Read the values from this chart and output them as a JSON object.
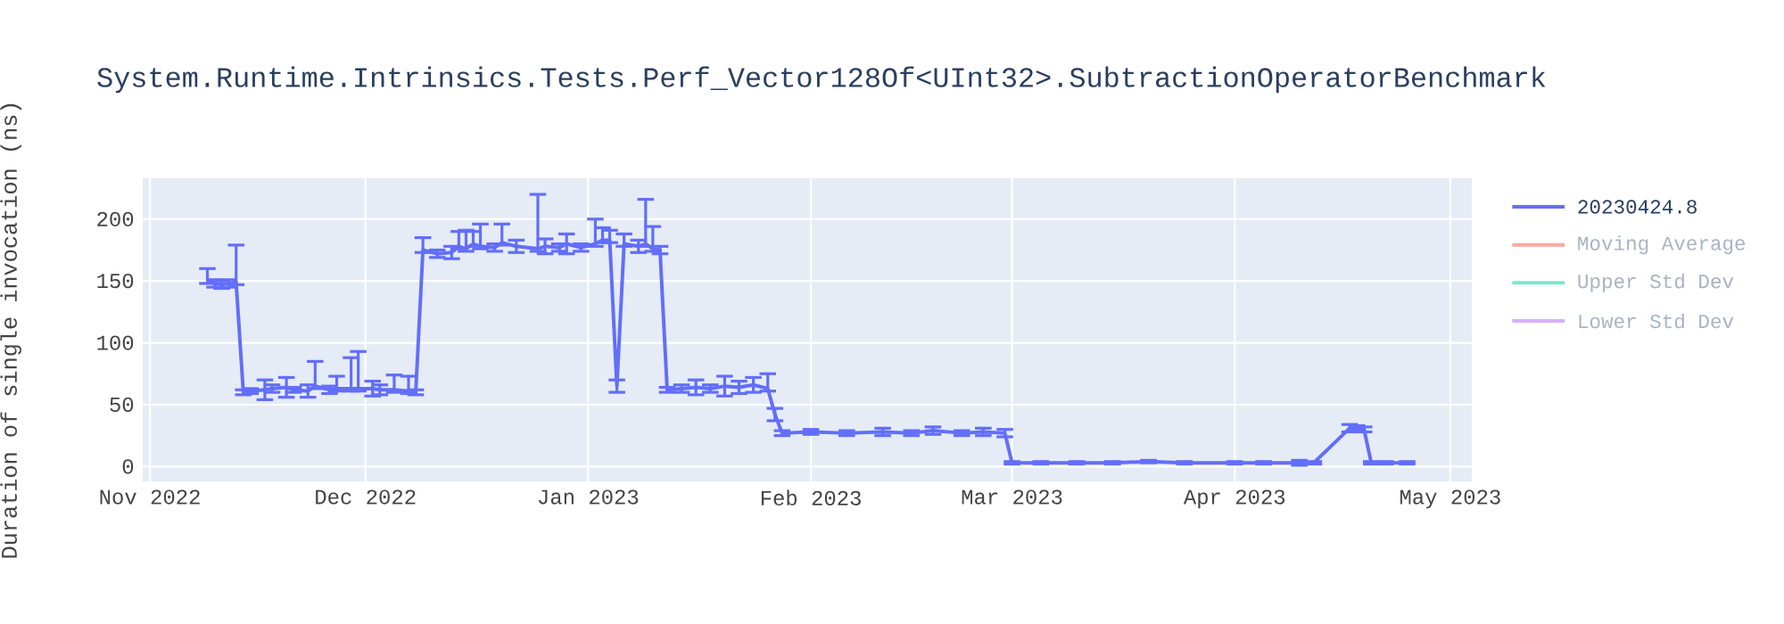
{
  "chart_data": {
    "type": "line",
    "title": "System.Runtime.Intrinsics.Tests.Perf_Vector128Of<UInt32>.SubtractionOperatorBenchmark",
    "ylabel": "Duration of single invocation (ns)",
    "xlim": [
      "2022-10-31",
      "2023-05-04"
    ],
    "ylim": [
      -12,
      233
    ],
    "xticks": [
      {
        "value": "2022-11-01",
        "label": "Nov 2022"
      },
      {
        "value": "2022-12-01",
        "label": "Dec 2022"
      },
      {
        "value": "2023-01-01",
        "label": "Jan 2023"
      },
      {
        "value": "2023-02-01",
        "label": "Feb 2023"
      },
      {
        "value": "2023-03-01",
        "label": "Mar 2023"
      },
      {
        "value": "2023-04-01",
        "label": "Apr 2023"
      },
      {
        "value": "2023-05-01",
        "label": "May 2023"
      }
    ],
    "yticks": [
      0,
      50,
      100,
      150,
      200
    ],
    "grid": true,
    "legend": "top right",
    "series": [
      {
        "name": "20230424.8",
        "color": "#636efa",
        "x": [
          "2022-11-09",
          "2022-11-10",
          "2022-11-11",
          "2022-11-12",
          "2022-11-13",
          "2022-11-14",
          "2022-11-15",
          "2022-11-17",
          "2022-11-18",
          "2022-11-20",
          "2022-11-21",
          "2022-11-23",
          "2022-11-24",
          "2022-11-26",
          "2022-11-27",
          "2022-11-29",
          "2022-11-30",
          "2022-12-02",
          "2022-12-03",
          "2022-12-05",
          "2022-12-07",
          "2022-12-08",
          "2022-12-09",
          "2022-12-11",
          "2022-12-13",
          "2022-12-14",
          "2022-12-15",
          "2022-12-16",
          "2022-12-17",
          "2022-12-19",
          "2022-12-20",
          "2022-12-22",
          "2022-12-25",
          "2022-12-26",
          "2022-12-28",
          "2022-12-29",
          "2022-12-31",
          "2023-01-02",
          "2023-01-03",
          "2023-01-04",
          "2023-01-05",
          "2023-01-06",
          "2023-01-08",
          "2023-01-09",
          "2023-01-10",
          "2023-01-11",
          "2023-01-12",
          "2023-01-14",
          "2023-01-16",
          "2023-01-18",
          "2023-01-20",
          "2023-01-22",
          "2023-01-24",
          "2023-01-26",
          "2023-01-27",
          "2023-01-28",
          "2023-02-01",
          "2023-02-06",
          "2023-02-11",
          "2023-02-15",
          "2023-02-18",
          "2023-02-22",
          "2023-02-25",
          "2023-02-28",
          "2023-03-01",
          "2023-03-05",
          "2023-03-10",
          "2023-03-15",
          "2023-03-20",
          "2023-03-25",
          "2023-04-01",
          "2023-04-05",
          "2023-04-10",
          "2023-04-12",
          "2023-04-17",
          "2023-04-18",
          "2023-04-19",
          "2023-04-20",
          "2023-04-22",
          "2023-04-25"
        ],
        "values": [
          150,
          148,
          147,
          148,
          149,
          60,
          61,
          62,
          63,
          64,
          62,
          61,
          65,
          62,
          63,
          63,
          63,
          63,
          62,
          62,
          61,
          60,
          175,
          172,
          173,
          178,
          176,
          180,
          178,
          177,
          181,
          178,
          176,
          178,
          177,
          180,
          177,
          180,
          183,
          183,
          65,
          180,
          178,
          180,
          176,
          175,
          62,
          63,
          64,
          63,
          65,
          64,
          66,
          63,
          42,
          27,
          28,
          27,
          28,
          27,
          29,
          27,
          28,
          27,
          3,
          3,
          3,
          3,
          4,
          3,
          3,
          3,
          3,
          3,
          31,
          31,
          30,
          3,
          3,
          3
        ],
        "errors": [
          [
            148,
            160
          ],
          3,
          3,
          3,
          [
            147,
            179
          ],
          2,
          2,
          8,
          3,
          8,
          2,
          5,
          [
            63,
            85
          ],
          3,
          [
            61,
            73
          ],
          [
            61,
            88
          ],
          [
            61,
            93
          ],
          6,
          4,
          [
            60,
            74
          ],
          [
            59,
            73
          ],
          2,
          [
            173,
            185
          ],
          3,
          5,
          [
            176,
            190
          ],
          [
            174,
            191
          ],
          [
            178,
            190
          ],
          [
            176,
            196
          ],
          3,
          [
            179,
            196
          ],
          5,
          [
            174,
            220
          ],
          6,
          3,
          8,
          3,
          [
            178,
            200
          ],
          [
            181,
            193
          ],
          [
            181,
            191
          ],
          5,
          [
            178,
            188
          ],
          5,
          [
            178,
            216
          ],
          [
            174,
            194
          ],
          3,
          2,
          3,
          6,
          3,
          8,
          5,
          6,
          [
            61,
            75
          ],
          5,
          2,
          2,
          2,
          3,
          2,
          3,
          2,
          3,
          3,
          1,
          1,
          1,
          1,
          1,
          1,
          1,
          1,
          2,
          1,
          3,
          2,
          2,
          1,
          1,
          1
        ]
      },
      {
        "name": "Moving Average",
        "color": "#f7aa9d"
      },
      {
        "name": "Upper Std Dev",
        "color": "#80e5cb"
      },
      {
        "name": "Lower Std Dev",
        "color": "#d5b1fd"
      }
    ]
  }
}
